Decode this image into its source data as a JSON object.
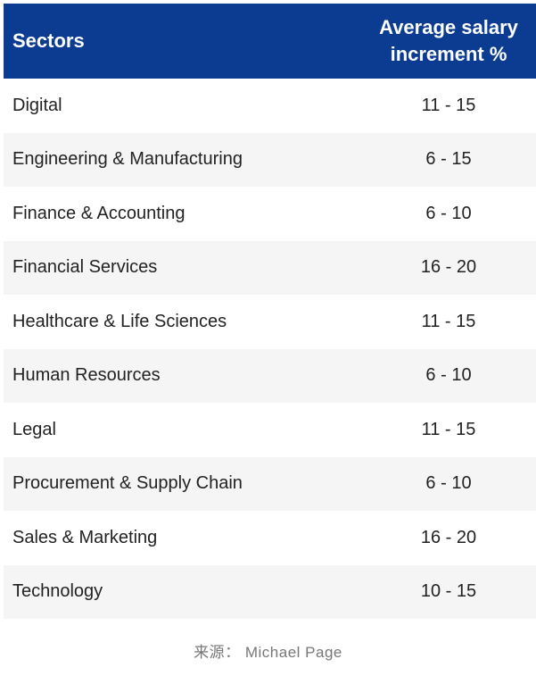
{
  "chart_data": {
    "type": "table",
    "columns": [
      "Sectors",
      "Average salary increment %"
    ],
    "rows": [
      [
        "Digital",
        "11 - 15"
      ],
      [
        "Engineering & Manufacturing",
        "6 - 15"
      ],
      [
        "Finance & Accounting",
        "6 - 10"
      ],
      [
        "Financial Services",
        "16 - 20"
      ],
      [
        "Healthcare & Life Sciences",
        "11 - 15"
      ],
      [
        "Human Resources",
        "6 - 10"
      ],
      [
        "Legal",
        "11 - 15"
      ],
      [
        "Procurement & Supply Chain",
        "6 - 10"
      ],
      [
        "Sales & Marketing",
        "16 - 20"
      ],
      [
        "Technology",
        "10 - 15"
      ]
    ]
  },
  "source": "来源： Michael Page",
  "colors": {
    "header_bg": "#0b3c91",
    "header_text": "#ffffff",
    "stripe": "#f5f5f5"
  }
}
